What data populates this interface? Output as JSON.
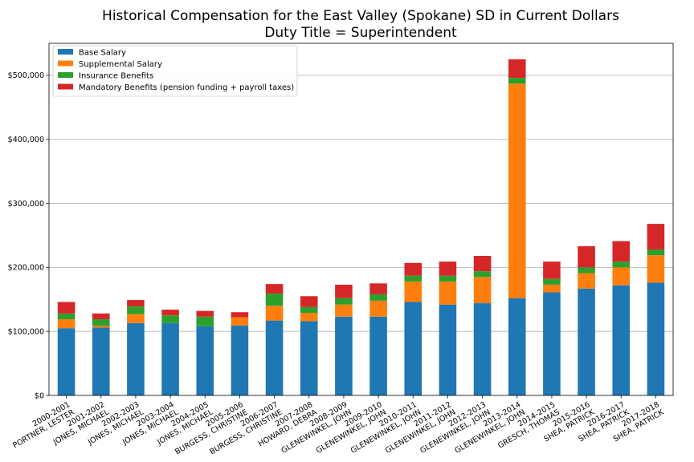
{
  "chart_data": {
    "type": "bar",
    "stacked": true,
    "title": [
      "Historical Compensation for the East Valley (Spokane) SD in Current Dollars",
      "Duty Title = Superintendent"
    ],
    "xlabel": "",
    "ylabel": "",
    "ylim": [
      0,
      550000
    ],
    "yticks": [
      0,
      100000,
      200000,
      300000,
      400000,
      500000
    ],
    "yticklabels": [
      "$0",
      "$100,000",
      "$200,000",
      "$300,000",
      "$400,000",
      "$500,000"
    ],
    "grid": "horizontal",
    "legend": "top-left",
    "categories": [
      [
        "2000-2001",
        "PORTNER, LESTER"
      ],
      [
        "2001-2002",
        "JONES, MICHAEL"
      ],
      [
        "2002-2003",
        "JONES, MICHAEL"
      ],
      [
        "2003-2004",
        "JONES, MICHAEL"
      ],
      [
        "2004-2005",
        "JONES, MICHAEL"
      ],
      [
        "2005-2006",
        "BURGESS, CHRISTINE"
      ],
      [
        "2006-2007",
        "BURGESS, CHRISTINE"
      ],
      [
        "2007-2008",
        "HOWARD, DEBRA"
      ],
      [
        "2008-2009",
        "GLENEWINKEL, JOHN"
      ],
      [
        "2009-2010",
        "GLENEWINKEL, JOHN"
      ],
      [
        "2010-2011",
        "GLENEWINKEL, JOHN"
      ],
      [
        "2011-2012",
        "GLENEWINKEL, JOHN"
      ],
      [
        "2012-2013",
        "GLENEWINKEL, JOHN"
      ],
      [
        "2013-2014",
        "GLENEWINKEL, JOHN"
      ],
      [
        "2014-2015",
        "GRESCH, THOMAS"
      ],
      [
        "2015-2016",
        "SHEA, PATRICK"
      ],
      [
        "2016-2017",
        "SHEA, PATRICK"
      ],
      [
        "2017-2018",
        "SHEA, PATRICK"
      ]
    ],
    "series": [
      {
        "name": "Base Salary",
        "color": "#1f77b4",
        "values": [
          105000,
          106000,
          113000,
          113000,
          108000,
          109000,
          117000,
          116000,
          123000,
          123000,
          146000,
          142000,
          144000,
          152000,
          161000,
          167000,
          172000,
          176000
        ]
      },
      {
        "name": "Supplemental Salary",
        "color": "#ff7f0e",
        "values": [
          14000,
          3000,
          14000,
          0,
          0,
          13000,
          23000,
          13000,
          19000,
          25000,
          32000,
          36000,
          41000,
          335000,
          12000,
          24000,
          28000,
          43000
        ]
      },
      {
        "name": "Insurance Benefits",
        "color": "#2ca02c",
        "values": [
          9000,
          10000,
          12000,
          12000,
          15000,
          0,
          19000,
          9000,
          10000,
          10000,
          9000,
          9000,
          9000,
          9000,
          9000,
          9000,
          9000,
          9000
        ]
      },
      {
        "name": "Mandatory Benefits (pension funding + payroll taxes)",
        "color": "#d62728",
        "values": [
          18000,
          9000,
          10000,
          9000,
          9000,
          8000,
          15000,
          17000,
          21000,
          17000,
          20000,
          22000,
          24000,
          29000,
          27000,
          33000,
          32000,
          40000
        ]
      }
    ]
  }
}
